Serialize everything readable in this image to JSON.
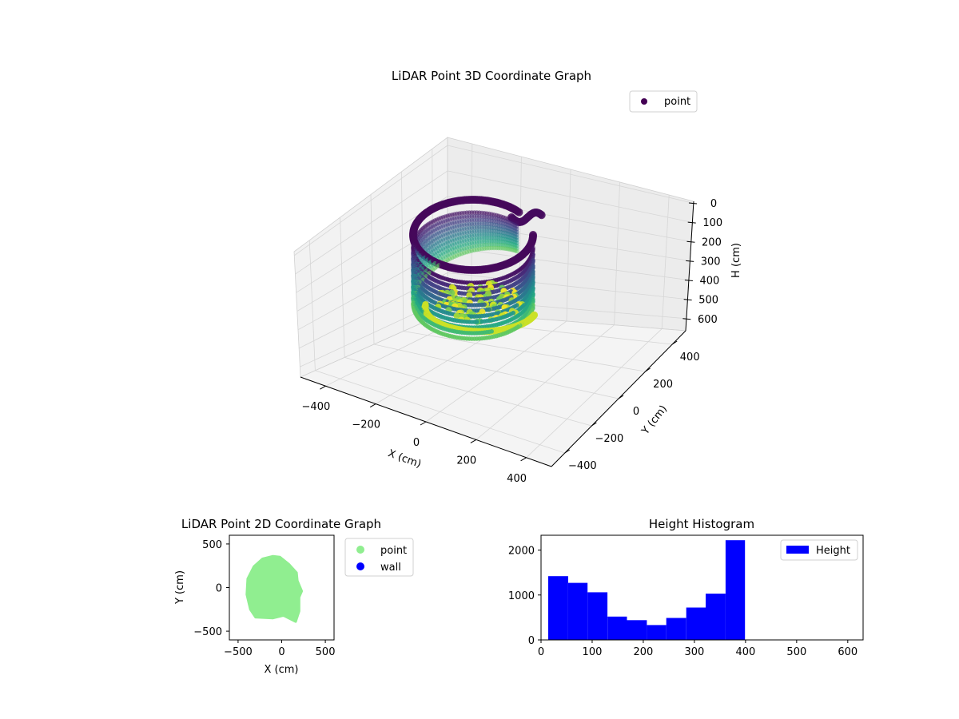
{
  "chart_data": [
    {
      "type": "scatter",
      "projection": "3d",
      "title": "LiDAR Point 3D Coordinate Graph",
      "xlabel": "X (cm)",
      "ylabel": "Y (cm)",
      "zlabel": "H (cm)",
      "xlim": [
        -500,
        500
      ],
      "ylim": [
        -500,
        500
      ],
      "zlim": [
        0,
        630
      ],
      "z_inverted": true,
      "xticks": [
        "−400",
        "−200",
        "0",
        "200",
        "400"
      ],
      "yticks": [
        "−400",
        "−200",
        "0",
        "200",
        "400"
      ],
      "zticks": [
        "0",
        "100",
        "200",
        "300",
        "400",
        "500",
        "600"
      ],
      "legend": [
        "point"
      ],
      "legend_position": "top-right",
      "colormap": "viridis",
      "grid": true
    },
    {
      "type": "scatter",
      "title": "LiDAR Point 2D Coordinate Graph",
      "xlabel": "X (cm)",
      "ylabel": "Y (cm)",
      "xlim": [
        -600,
        600
      ],
      "ylim": [
        -600,
        600
      ],
      "xticks": [
        "−500",
        "0",
        "500"
      ],
      "yticks": [
        "−500",
        "0",
        "500"
      ],
      "series": [
        {
          "name": "point",
          "color": "#90ee90",
          "shape": "filled blob, x ≈ −400…220, y ≈ −390…360"
        },
        {
          "name": "wall",
          "color": "#0000ff",
          "points": []
        }
      ],
      "legend_position": "outside-right"
    },
    {
      "type": "bar",
      "subtype": "histogram",
      "title": "Height Histogram",
      "bins": [
        [
          14,
          53
        ],
        [
          53,
          91
        ],
        [
          91,
          130
        ],
        [
          130,
          168
        ],
        [
          168,
          207
        ],
        [
          207,
          245
        ],
        [
          245,
          284
        ],
        [
          284,
          322
        ],
        [
          322,
          361
        ],
        [
          361,
          399
        ]
      ],
      "values": [
        1420,
        1270,
        1060,
        520,
        440,
        330,
        490,
        720,
        1030,
        2220
      ],
      "xlim": [
        0,
        630
      ],
      "ylim": [
        0,
        2330
      ],
      "xticks": [
        "0",
        "100",
        "200",
        "300",
        "400",
        "500",
        "600"
      ],
      "yticks": [
        "0",
        "1000",
        "2000"
      ],
      "series": [
        {
          "name": "Height",
          "color": "#0000ff"
        }
      ],
      "legend_position": "top-right"
    }
  ]
}
